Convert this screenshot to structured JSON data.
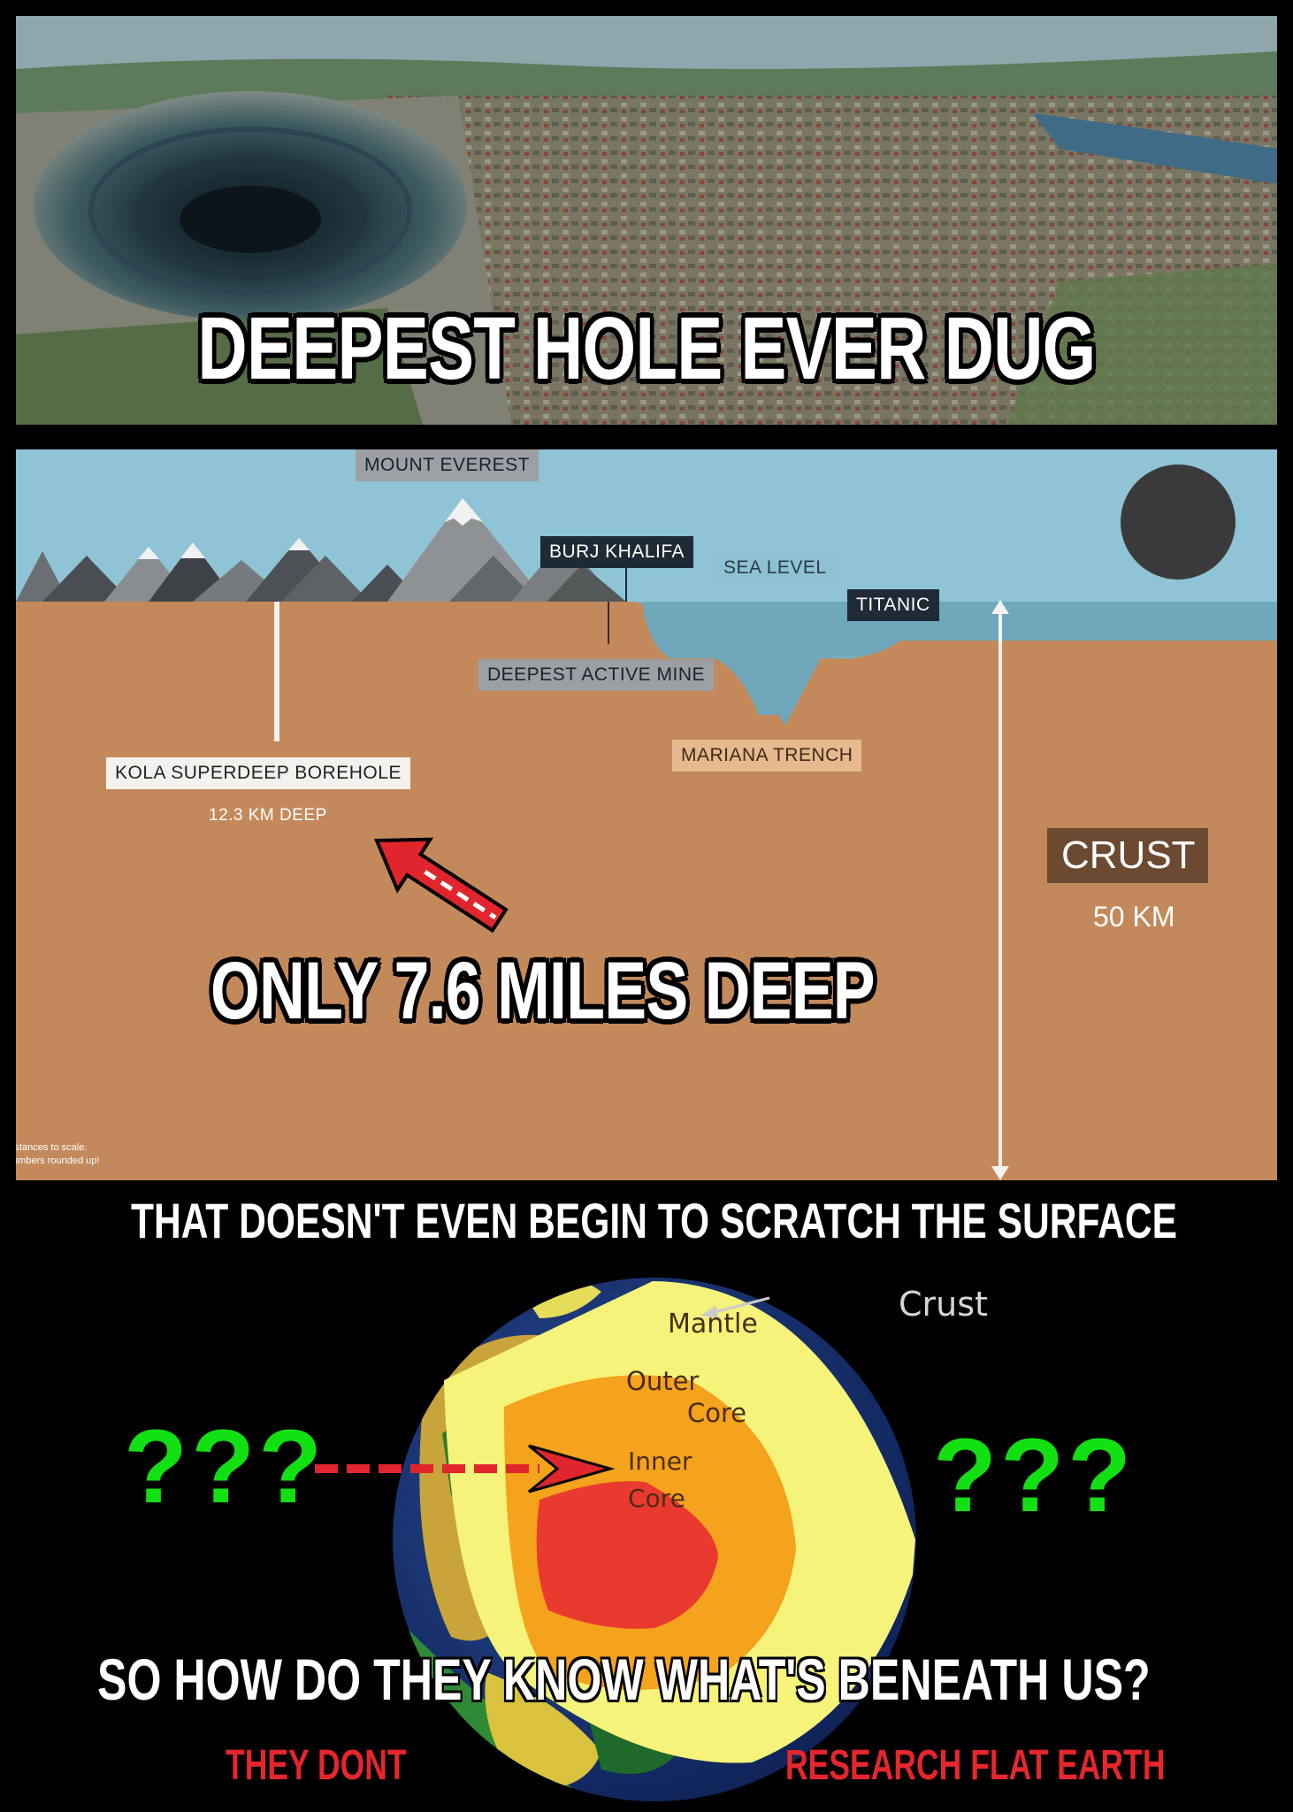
{
  "top_panel": {
    "headline": "DEEPEST HOLE EVER DUG"
  },
  "diagram": {
    "labels": {
      "mount_everest": "MOUNT EVEREST",
      "burj_khalifa": "BURJ KHALIFA",
      "sea_level": "SEA LEVEL",
      "titanic": "TITANIC",
      "deepest_active_mine": "DEEPEST ACTIVE MINE",
      "mariana_trench": "MARIANA TRENCH",
      "kola_borehole": "KOLA SUPERDEEP BOREHOLE",
      "kola_depth": "12.3 KM DEEP",
      "crust": "CRUST",
      "crust_depth": "50 KM"
    },
    "footnote_line1": "istances to scale.",
    "footnote_line2": "umbers rounded up!",
    "overlay_text": "ONLY 7.6 MILES DEEP"
  },
  "captions": {
    "scratch_surface": "THAT DOESN'T EVEN BEGIN TO SCRATCH THE SURFACE",
    "how_know": "SO HOW DO THEY KNOW WHAT'S BENEATH US?",
    "they_dont": "THEY DONT",
    "research": "RESEARCH FLAT EARTH"
  },
  "earth_diagram": {
    "mantle": "Mantle",
    "outer_core_1": "Outer",
    "outer_core_2": "Core",
    "inner_core_1": "Inner",
    "inner_core_2": "Core",
    "crust": "Crust"
  },
  "question_marks": "???",
  "colors": {
    "diagram_sky": "#8ec4d6",
    "diagram_ground": "#c4895b",
    "question_green": "#12e012",
    "caption_red": "#e5262d",
    "arrow_red": "#e0262c"
  }
}
